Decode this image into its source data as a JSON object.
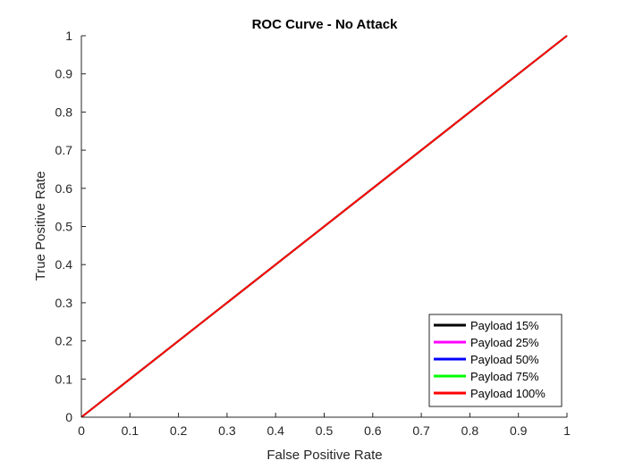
{
  "chart_data": {
    "type": "line",
    "title": "ROC Curve - No Attack",
    "xlabel": "False Positive Rate",
    "ylabel": "True Positive Rate",
    "xlim": [
      0,
      1
    ],
    "ylim": [
      0,
      1
    ],
    "xticks": [
      0,
      0.1,
      0.2,
      0.3,
      0.4,
      0.5,
      0.6,
      0.7,
      0.8,
      0.9,
      1
    ],
    "xtick_labels": [
      "0",
      "0.1",
      "0.2",
      "0.3",
      "0.4",
      "0.5",
      "0.6",
      "0.7",
      "0.8",
      "0.9",
      "1"
    ],
    "yticks": [
      0,
      0.1,
      0.2,
      0.3,
      0.4,
      0.5,
      0.6,
      0.7,
      0.8,
      0.9,
      1
    ],
    "ytick_labels": [
      "0",
      "0.1",
      "0.2",
      "0.3",
      "0.4",
      "0.5",
      "0.6",
      "0.7",
      "0.8",
      "0.9",
      "1"
    ],
    "grid": false,
    "legend_position": "bottom-right",
    "series": [
      {
        "name": "Payload 15%",
        "color": "#000000",
        "x": [
          0,
          1
        ],
        "y": [
          0,
          1
        ]
      },
      {
        "name": "Payload 25%",
        "color": "#ff00ff",
        "x": [
          0,
          1
        ],
        "y": [
          0,
          1
        ]
      },
      {
        "name": "Payload 50%",
        "color": "#0000ff",
        "x": [
          0,
          1
        ],
        "y": [
          0,
          1
        ]
      },
      {
        "name": "Payload 75%",
        "color": "#00ff00",
        "x": [
          0,
          1
        ],
        "y": [
          0,
          1
        ]
      },
      {
        "name": "Payload 100%",
        "color": "#ff0000",
        "x": [
          0,
          1
        ],
        "y": [
          0,
          1
        ]
      }
    ]
  }
}
